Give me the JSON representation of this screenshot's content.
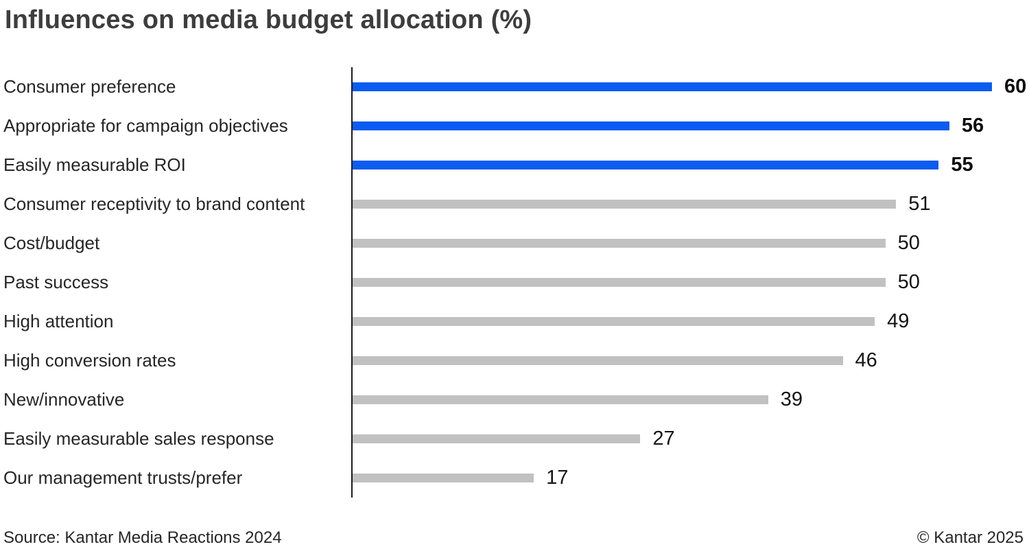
{
  "title": "Influences on media budget allocation (%)",
  "footer": {
    "source": "Source: Kantar Media Reactions 2024",
    "copyright": "© Kantar 2025"
  },
  "colors": {
    "highlight_bar": "#0b5cf0",
    "default_bar": "#c1c1c1",
    "axis_line": "#1a1a1a",
    "title_text": "#3d3d3d",
    "label_text": "#262626",
    "value_text": "#141414"
  },
  "chart_data": {
    "type": "bar",
    "orientation": "horizontal",
    "title": "Influences on media budget allocation (%)",
    "xlabel": "",
    "ylabel": "",
    "xlim": [
      0,
      60
    ],
    "grid": false,
    "legend": false,
    "value_label_position": "end-of-bar",
    "categories": [
      "Consumer preference",
      "Appropriate for campaign objectives",
      "Easily measurable ROI",
      "Consumer receptivity to brand content",
      "Cost/budget",
      "Past success",
      "High attention",
      "High conversion rates",
      "New/innovative",
      "Easily measurable sales response",
      "Our management trusts/prefer"
    ],
    "values": [
      60,
      56,
      55,
      51,
      50,
      50,
      49,
      46,
      39,
      27,
      17
    ],
    "highlighted": [
      true,
      true,
      true,
      false,
      false,
      false,
      false,
      false,
      false,
      false,
      false
    ]
  }
}
